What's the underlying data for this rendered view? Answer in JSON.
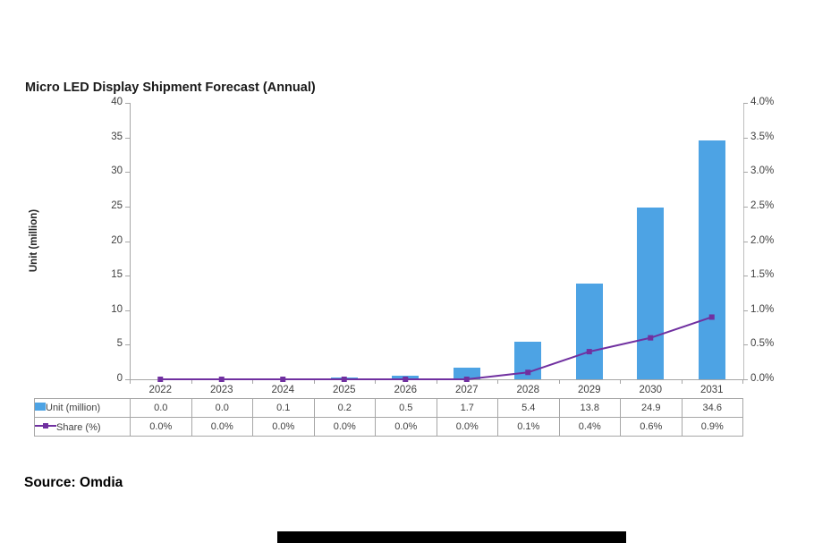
{
  "page": {
    "source_label": "Source: Omdia"
  },
  "chart_data": {
    "type": "combo-bar-line",
    "title": "Micro LED Display Shipment Forecast (Annual)",
    "categories": [
      "2022",
      "2023",
      "2024",
      "2025",
      "2026",
      "2027",
      "2028",
      "2029",
      "2030",
      "2031"
    ],
    "series": [
      {
        "name": "Unit (million)",
        "type": "bar",
        "axis": "left",
        "color": "#4DA3E4",
        "values": [
          0.0,
          0.0,
          0.1,
          0.2,
          0.5,
          1.7,
          5.4,
          13.8,
          24.9,
          34.6
        ]
      },
      {
        "name": "Share (%)",
        "type": "line",
        "axis": "right",
        "color": "#7030A0",
        "values": [
          0.0,
          0.0,
          0.0,
          0.0,
          0.0,
          0.0,
          0.1,
          0.4,
          0.6,
          0.9
        ]
      }
    ],
    "left_axis": {
      "label": "Unit (million)",
      "min": 0,
      "max": 40,
      "step": 5,
      "ticks": [
        "0",
        "5",
        "10",
        "15",
        "20",
        "25",
        "30",
        "35",
        "40"
      ]
    },
    "right_axis": {
      "min": 0,
      "max": 4,
      "step": 0.5,
      "ticks": [
        "0.0%",
        "0.5%",
        "1.0%",
        "1.5%",
        "2.0%",
        "2.5%",
        "3.0%",
        "3.5%",
        "4.0%"
      ]
    },
    "grid": false,
    "legend_position": "table-left",
    "table": {
      "rows": [
        {
          "label": "Unit (million)",
          "swatch": "bar",
          "values": [
            "0.0",
            "0.0",
            "0.1",
            "0.2",
            "0.5",
            "1.7",
            "5.4",
            "13.8",
            "24.9",
            "34.6"
          ]
        },
        {
          "label": "Share (%)",
          "swatch": "line",
          "values": [
            "0.0%",
            "0.0%",
            "0.0%",
            "0.0%",
            "0.0%",
            "0.0%",
            "0.1%",
            "0.4%",
            "0.6%",
            "0.9%"
          ]
        }
      ]
    }
  }
}
